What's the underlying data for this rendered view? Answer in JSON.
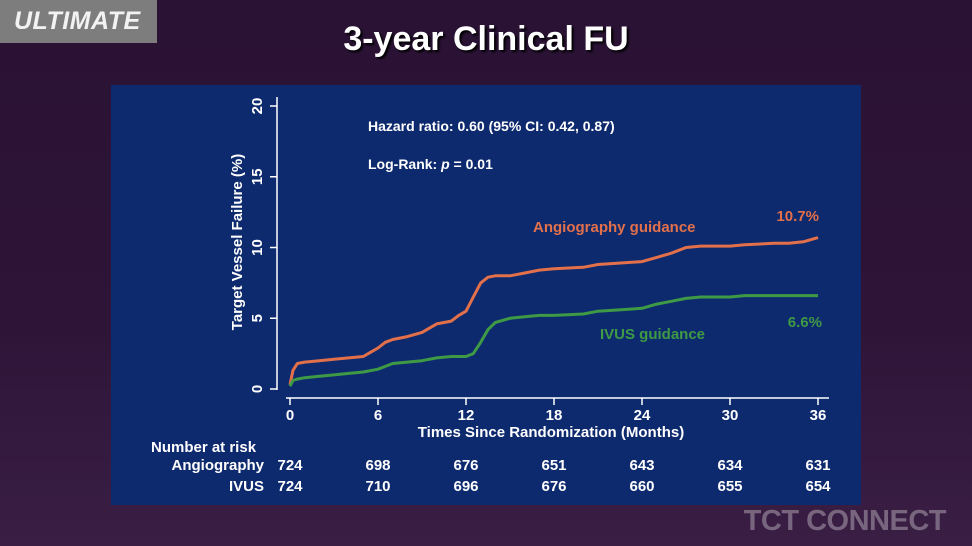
{
  "header": {
    "badge": "ULTIMATE",
    "title": "3-year Clinical FU",
    "footer_logo": "TCT CONNECT"
  },
  "chart_data": {
    "type": "line",
    "ylabel": "Target Vessel Failure (%)",
    "xlabel": "Times Since Randomization (Months)",
    "xlim": [
      0,
      36
    ],
    "ylim": [
      0,
      20
    ],
    "x_ticks": [
      0,
      6,
      12,
      18,
      24,
      30,
      36
    ],
    "y_ticks": [
      0,
      5,
      10,
      15,
      20
    ],
    "annotations": {
      "hazard_ratio": "Hazard ratio: 0.60 (95% CI: 0.42, 0.87)",
      "log_rank_prefix": "Log-Rank: ",
      "log_rank_p": "p",
      "log_rank_suffix": " = 0.01"
    },
    "series": [
      {
        "name": "Angiography guidance",
        "end_label": "10.7%",
        "color": "#e2704a",
        "points": [
          [
            0,
            0.3
          ],
          [
            0.2,
            1.3
          ],
          [
            0.5,
            1.8
          ],
          [
            1,
            1.9
          ],
          [
            2,
            2.0
          ],
          [
            3,
            2.1
          ],
          [
            4,
            2.2
          ],
          [
            5,
            2.3
          ],
          [
            5.5,
            2.6
          ],
          [
            6,
            2.9
          ],
          [
            6.5,
            3.3
          ],
          [
            7,
            3.5
          ],
          [
            8,
            3.7
          ],
          [
            9,
            4.0
          ],
          [
            9.5,
            4.3
          ],
          [
            10,
            4.6
          ],
          [
            11,
            4.8
          ],
          [
            11.5,
            5.2
          ],
          [
            12,
            5.5
          ],
          [
            12.5,
            6.5
          ],
          [
            13,
            7.5
          ],
          [
            13.5,
            7.9
          ],
          [
            14,
            8.0
          ],
          [
            15,
            8.0
          ],
          [
            16,
            8.2
          ],
          [
            17,
            8.4
          ],
          [
            18,
            8.5
          ],
          [
            20,
            8.6
          ],
          [
            21,
            8.8
          ],
          [
            24,
            9.0
          ],
          [
            25,
            9.3
          ],
          [
            26,
            9.6
          ],
          [
            27,
            10.0
          ],
          [
            28,
            10.1
          ],
          [
            30,
            10.1
          ],
          [
            31,
            10.2
          ],
          [
            33,
            10.3
          ],
          [
            34,
            10.3
          ],
          [
            35,
            10.4
          ],
          [
            36,
            10.7
          ]
        ]
      },
      {
        "name": "IVUS guidance",
        "end_label": "6.6%",
        "color": "#3e9a45",
        "points": [
          [
            0,
            0.2
          ],
          [
            0.2,
            0.6
          ],
          [
            0.5,
            0.7
          ],
          [
            1,
            0.8
          ],
          [
            2,
            0.9
          ],
          [
            3,
            1.0
          ],
          [
            4,
            1.1
          ],
          [
            5,
            1.2
          ],
          [
            6,
            1.4
          ],
          [
            6.5,
            1.6
          ],
          [
            7,
            1.8
          ],
          [
            8,
            1.9
          ],
          [
            9,
            2.0
          ],
          [
            10,
            2.2
          ],
          [
            11,
            2.3
          ],
          [
            12,
            2.3
          ],
          [
            12.5,
            2.5
          ],
          [
            13,
            3.3
          ],
          [
            13.5,
            4.2
          ],
          [
            14,
            4.7
          ],
          [
            15,
            5.0
          ],
          [
            16,
            5.1
          ],
          [
            17,
            5.2
          ],
          [
            18,
            5.2
          ],
          [
            20,
            5.3
          ],
          [
            21,
            5.5
          ],
          [
            24,
            5.7
          ],
          [
            25,
            6.0
          ],
          [
            26,
            6.2
          ],
          [
            27,
            6.4
          ],
          [
            28,
            6.5
          ],
          [
            30,
            6.5
          ],
          [
            31,
            6.6
          ],
          [
            33,
            6.6
          ],
          [
            34,
            6.6
          ],
          [
            36,
            6.6
          ]
        ]
      }
    ],
    "risk_table": {
      "title": "Number at risk",
      "rows": [
        {
          "label": "Angiography",
          "values": [
            724,
            698,
            676,
            651,
            643,
            634,
            631
          ]
        },
        {
          "label": "IVUS",
          "values": [
            724,
            710,
            696,
            676,
            660,
            655,
            654
          ]
        }
      ]
    }
  }
}
